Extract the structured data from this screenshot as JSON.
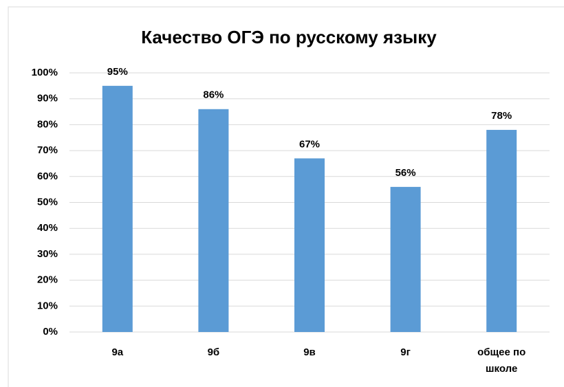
{
  "chart_data": {
    "type": "bar",
    "title": "Качество   ОГЭ по русскому языку",
    "categories": [
      "9а",
      "9б",
      "9в",
      "9г",
      "общее по школе"
    ],
    "values": [
      95,
      86,
      67,
      56,
      78
    ],
    "value_labels": [
      "95%",
      "86%",
      "67%",
      "56%",
      "78%"
    ],
    "color": "#5b9bd5",
    "ylim": [
      0,
      100
    ],
    "yticks": [
      {
        "value": 0,
        "label": "0%"
      },
      {
        "value": 10,
        "label": "10%"
      },
      {
        "value": 20,
        "label": "20%"
      },
      {
        "value": 30,
        "label": "30%"
      },
      {
        "value": 40,
        "label": "40%"
      },
      {
        "value": 50,
        "label": "50%"
      },
      {
        "value": 60,
        "label": "60%"
      },
      {
        "value": 70,
        "label": "70%"
      },
      {
        "value": 80,
        "label": "80%"
      },
      {
        "value": 90,
        "label": "90%"
      },
      {
        "value": 100,
        "label": "100%"
      }
    ],
    "grid": true
  }
}
